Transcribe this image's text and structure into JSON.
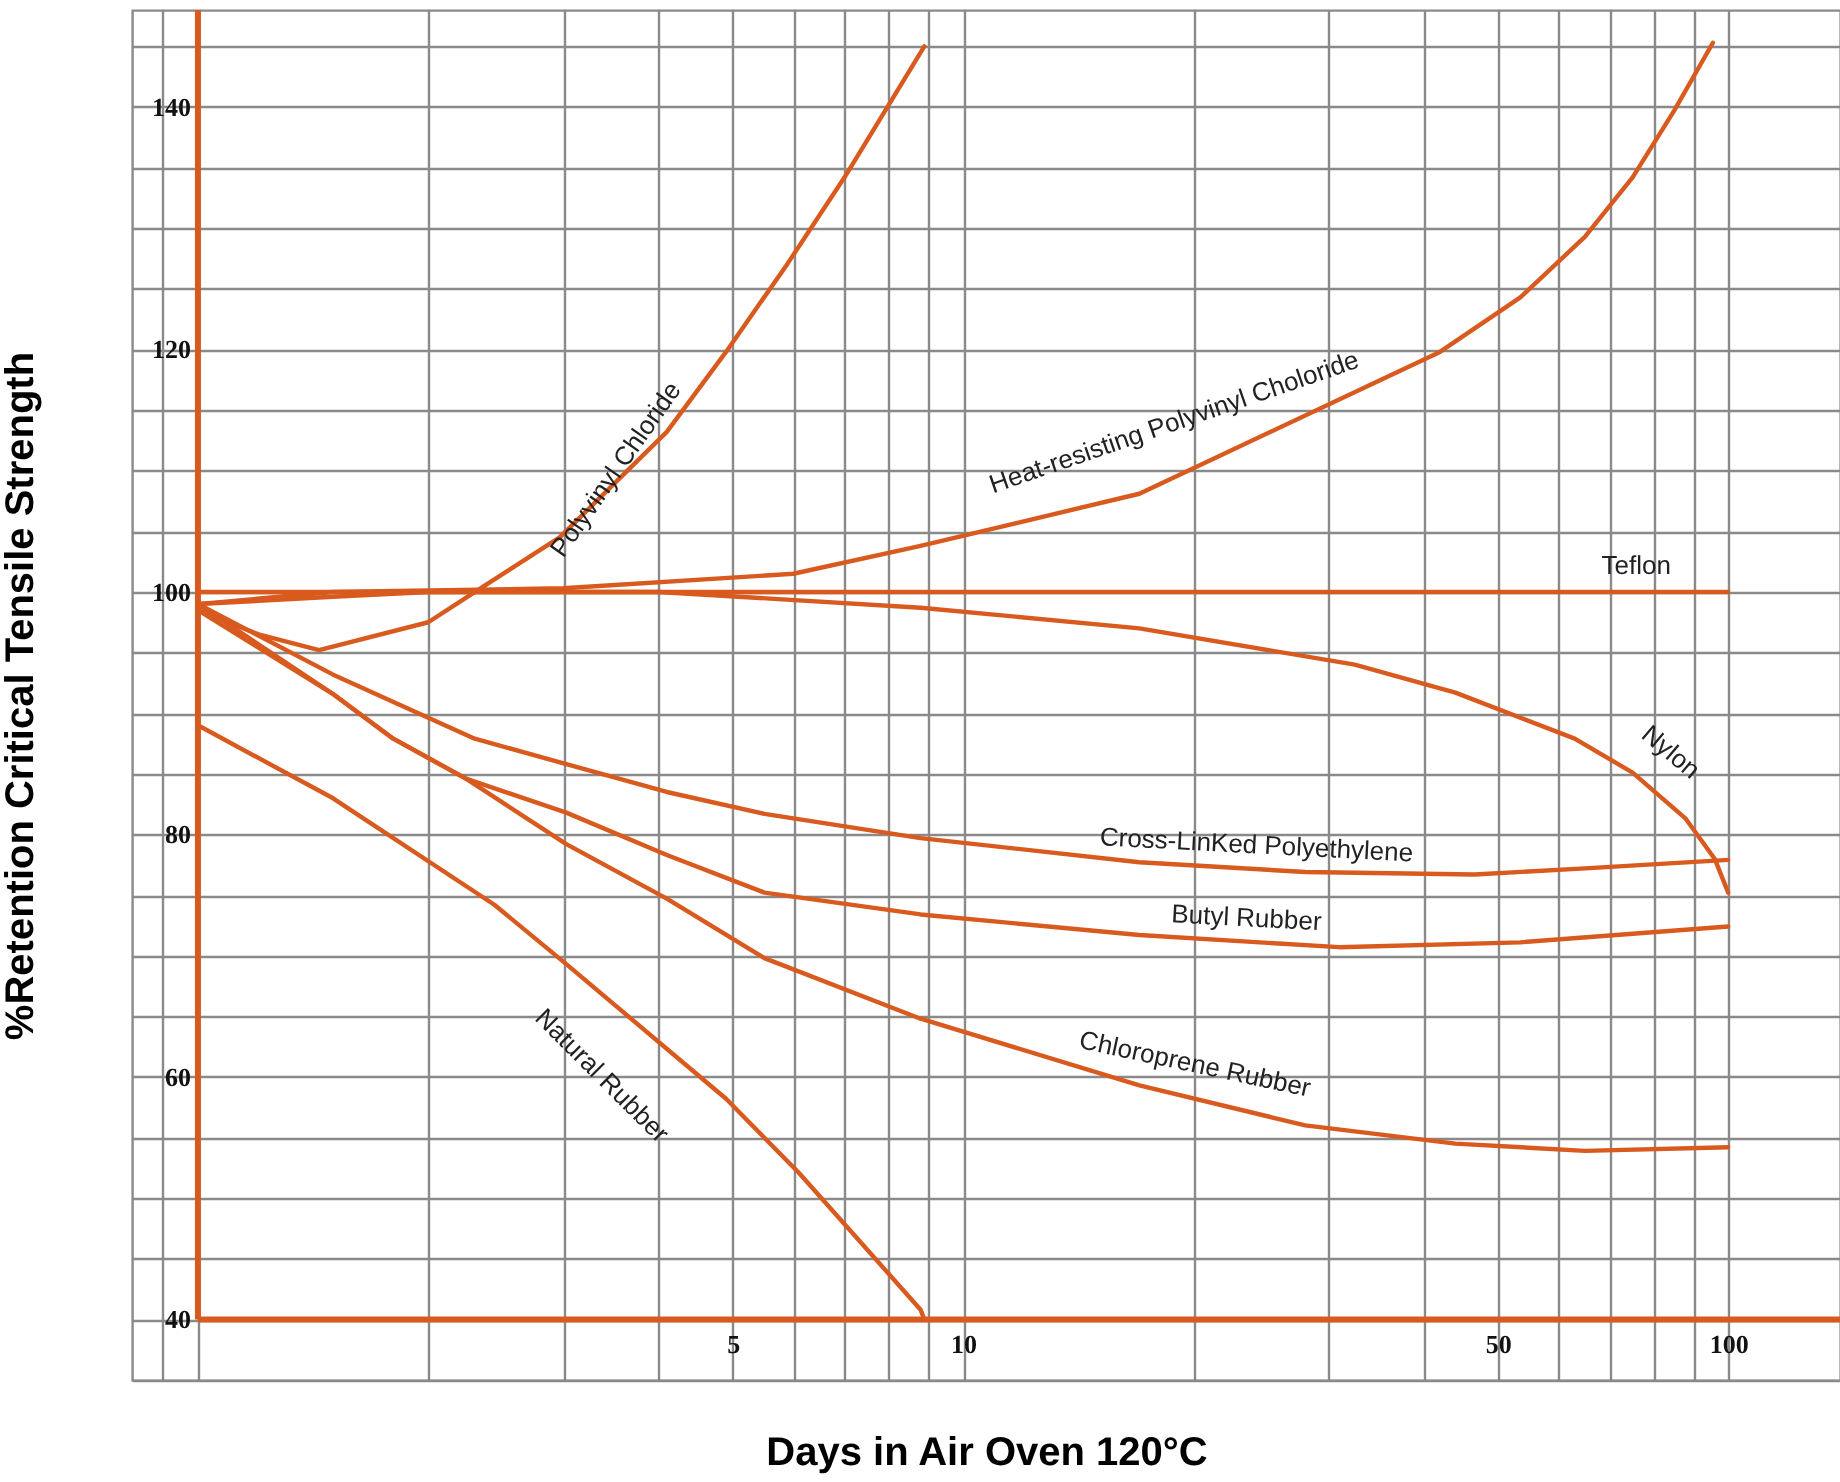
{
  "chart_data": {
    "type": "line",
    "xlabel": "Days in Air Oven 120°C",
    "ylabel": "%Retention Critical Tensile Strength",
    "log": "x",
    "grid": true,
    "marker": "none",
    "line_style": "solid",
    "xlim": [
      0.82,
      140
    ],
    "ylim": [
      35,
      148
    ],
    "xticks": [
      {
        "value": 0.9,
        "label": null
      },
      {
        "value": 1,
        "label": null
      },
      {
        "value": 2,
        "label": null
      },
      {
        "value": 3,
        "label": null
      },
      {
        "value": 4,
        "label": null
      },
      5,
      {
        "value": 6,
        "label": null
      },
      {
        "value": 7,
        "label": null
      },
      {
        "value": 8,
        "label": null
      },
      {
        "value": 9,
        "label": null
      },
      10,
      {
        "value": 20,
        "label": null
      },
      {
        "value": 30,
        "label": null
      },
      {
        "value": 40,
        "label": null
      },
      50,
      {
        "value": 60,
        "label": null
      },
      {
        "value": 70,
        "label": null
      },
      {
        "value": 80,
        "label": null
      },
      {
        "value": 90,
        "label": null
      },
      100
    ],
    "yticks": [
      {
        "value": 35,
        "label": null
      },
      40,
      {
        "value": 45,
        "label": null
      },
      {
        "value": 50,
        "label": null
      },
      {
        "value": 55,
        "label": null
      },
      60,
      {
        "value": 65,
        "label": null
      },
      {
        "value": 70,
        "label": null
      },
      {
        "value": 75,
        "label": null
      },
      80,
      {
        "value": 85,
        "label": null
      },
      {
        "value": 90,
        "label": null
      },
      {
        "value": 95,
        "label": null
      },
      100,
      {
        "value": 105,
        "label": null
      },
      {
        "value": 110,
        "label": null
      },
      {
        "value": 115,
        "label": null
      },
      120,
      {
        "value": 125,
        "label": null
      },
      {
        "value": 130,
        "label": null
      },
      {
        "value": 135,
        "label": null
      },
      140,
      {
        "value": 145,
        "label": null
      }
    ],
    "ref_lines": [
      {
        "axis": "x",
        "value": 1,
        "color": "#d95a1e"
      },
      {
        "axis": "y",
        "value": 40,
        "color": "#d95a1e"
      }
    ],
    "series": [
      {
        "name": "Polyvinyl Chloride",
        "color": "#d95a1e",
        "x": [
          1,
          1.2,
          1.44,
          2,
          2.34,
          2.97,
          4.1,
          4.9,
          5.9,
          7,
          8.9
        ],
        "values": [
          98.5,
          96.5,
          95.2,
          97.5,
          100.3,
          104.5,
          113.2,
          119.8,
          127.1,
          134.2,
          145
        ]
      },
      {
        "name": "Heat-resisting Polyvinyl Choloride",
        "color": "#d95a1e",
        "x": [
          1,
          1.5,
          3,
          6,
          8.8,
          17,
          42,
          53.5,
          65,
          75,
          85,
          95.5
        ],
        "values": [
          99,
          100,
          100.3,
          101.5,
          103.8,
          108.1,
          119.8,
          124.3,
          129.3,
          134.2,
          139.7,
          145.3
        ]
      },
      {
        "name": "Teflon",
        "color": "#d95a1e",
        "x": [
          1,
          100
        ],
        "values": [
          100,
          100
        ]
      },
      {
        "name": "Nylon",
        "color": "#d95a1e",
        "x": [
          1,
          1.5,
          2,
          4,
          8.8,
          17,
          32.5,
          44,
          63,
          75,
          88,
          96,
          100
        ],
        "values": [
          99,
          99.6,
          100,
          100,
          98.7,
          97,
          94,
          91.7,
          87.9,
          85.1,
          81.3,
          78,
          75.2
        ]
      },
      {
        "name": "Cross-LinKed Polyethylene",
        "color": "#d95a1e",
        "x": [
          1,
          1.5,
          2.3,
          3.03,
          4.1,
          5.5,
          8.8,
          17,
          28,
          46.6,
          65,
          100
        ],
        "values": [
          99,
          93.2,
          87.9,
          85.8,
          83.5,
          81.7,
          79.7,
          77.7,
          76.9,
          76.7,
          77.2,
          77.9
        ]
      },
      {
        "name": "Butyl Rubber",
        "color": "#d95a1e",
        "x": [
          1,
          1.5,
          1.8,
          2.24,
          3.03,
          4.1,
          5.5,
          8.8,
          17,
          31,
          53.5,
          100
        ],
        "values": [
          99,
          91.6,
          87.9,
          84.6,
          81.8,
          78.3,
          75.2,
          73.4,
          71.7,
          70.7,
          71.1,
          72.4
        ]
      },
      {
        "name": "Chloroprene Rubber",
        "color": "#d95a1e",
        "x": [
          1,
          1.5,
          1.8,
          2.24,
          3.03,
          4.1,
          5.5,
          8.8,
          17,
          28,
          44,
          65,
          100
        ],
        "values": [
          98.5,
          91.6,
          87.9,
          84.6,
          79.2,
          74.7,
          69.8,
          64.8,
          59.3,
          56,
          54.5,
          53.9,
          54.2
        ]
      },
      {
        "name": "Natural Rubber",
        "color": "#d95a1e",
        "x": [
          1,
          1.5,
          2.44,
          3.03,
          4.9,
          6.1,
          8.8,
          8.9
        ],
        "values": [
          89,
          83,
          74.2,
          69.3,
          58.2,
          52.1,
          40.8,
          40
        ]
      }
    ]
  }
}
